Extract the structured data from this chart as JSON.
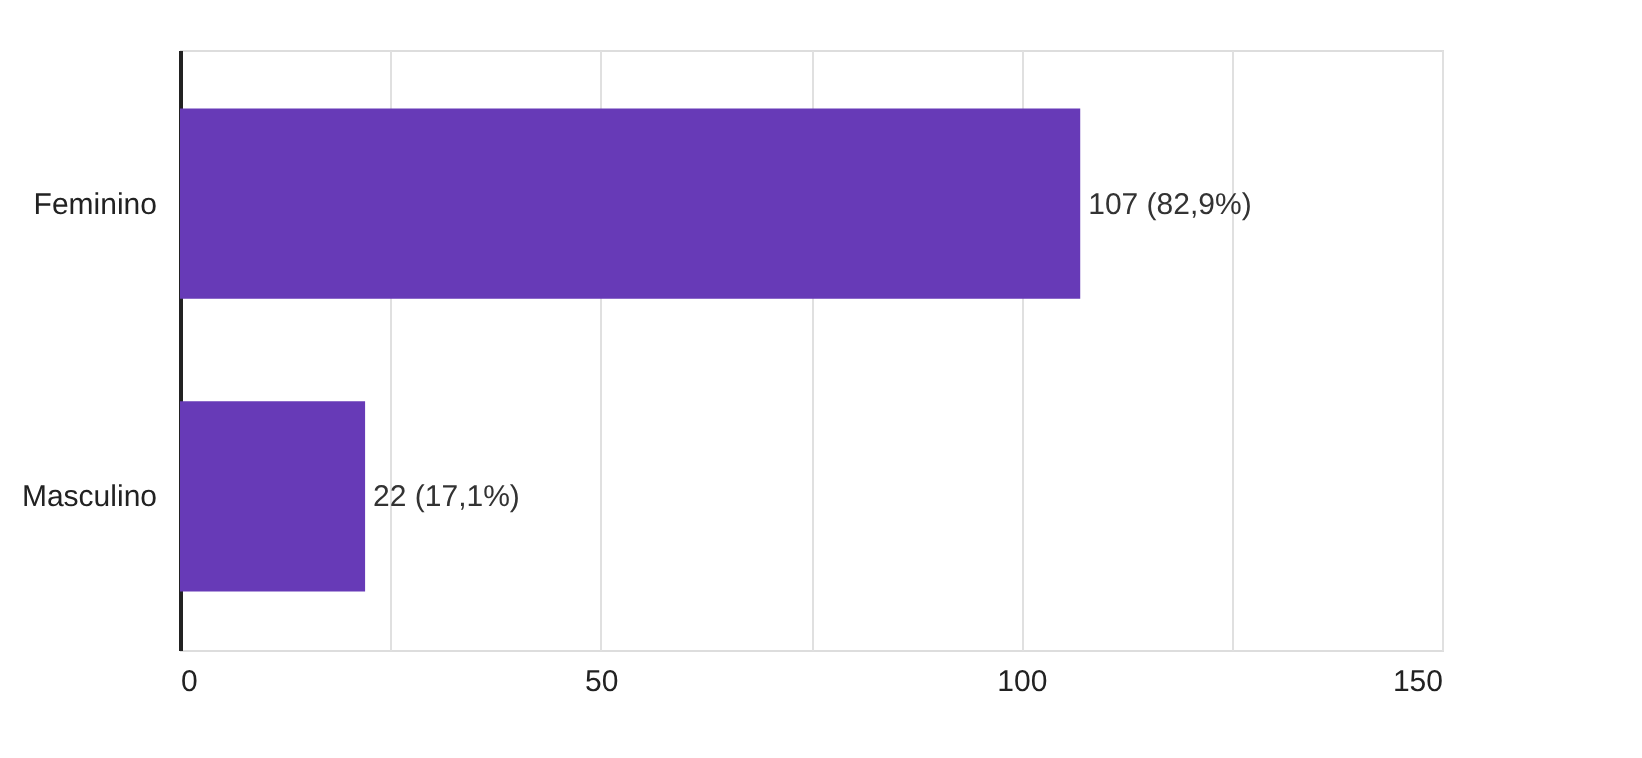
{
  "chart_data": {
    "type": "bar",
    "orientation": "horizontal",
    "categories": [
      "Feminino",
      "Masculino"
    ],
    "values": [
      107,
      22
    ],
    "value_labels": [
      "107 (82,9%)",
      "22 (17,1%)"
    ],
    "color": "#673ab7",
    "xlim": [
      0,
      150
    ],
    "xticks": [
      0,
      {
        "value": 25,
        "label": null
      },
      50,
      {
        "value": 75,
        "label": null
      },
      100,
      {
        "value": 125,
        "label": null
      },
      150
    ],
    "grid": "x"
  }
}
